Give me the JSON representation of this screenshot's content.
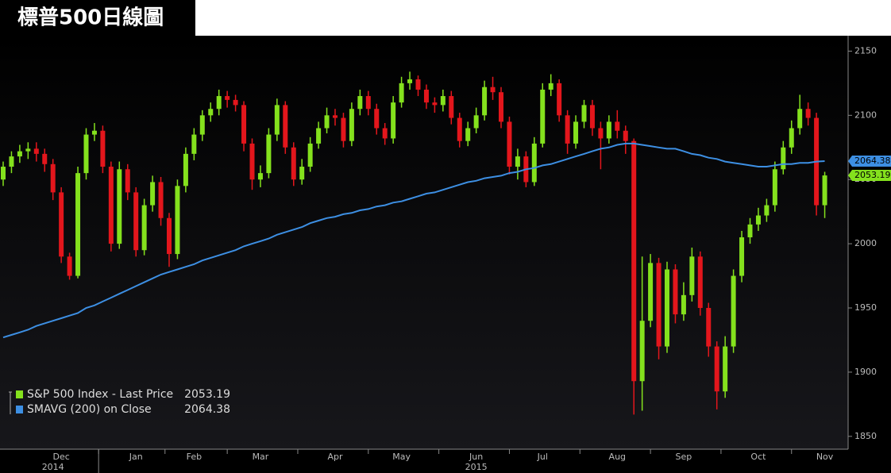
{
  "chart_data": {
    "type": "candlestick",
    "title": "標普500日線圖",
    "categories": [
      null,
      null,
      null,
      null,
      null,
      null,
      null,
      "Dec",
      null,
      null,
      null,
      null,
      null,
      null,
      null,
      null,
      "Jan",
      null,
      null,
      null,
      null,
      null,
      null,
      "Feb",
      null,
      null,
      null,
      null,
      null,
      null,
      null,
      "Mar",
      null,
      null,
      null,
      null,
      null,
      null,
      null,
      null,
      "Apr",
      null,
      null,
      null,
      null,
      null,
      null,
      null,
      "May",
      null,
      null,
      null,
      null,
      null,
      null,
      null,
      null,
      "Jun",
      null,
      null,
      null,
      null,
      null,
      null,
      null,
      "Jul",
      null,
      null,
      null,
      null,
      null,
      null,
      null,
      null,
      "Aug",
      null,
      null,
      null,
      null,
      null,
      null,
      null,
      "Sep",
      null,
      null,
      null,
      null,
      null,
      null,
      null,
      null,
      "Oct",
      null,
      null,
      null,
      null,
      null,
      null,
      null,
      "Nov"
    ],
    "year_labels": [
      null,
      null,
      null,
      null,
      null,
      null,
      "2014",
      null,
      null,
      null,
      null,
      null,
      null,
      null,
      null,
      null,
      null,
      null,
      null,
      null,
      null,
      null,
      null,
      null,
      null,
      null,
      null,
      null,
      null,
      null,
      null,
      null,
      null,
      null,
      null,
      null,
      null,
      null,
      null,
      null,
      null,
      null,
      null,
      null,
      null,
      null,
      null,
      null,
      null,
      null,
      null,
      null,
      null,
      null,
      null,
      null,
      null,
      "2015",
      null,
      null,
      null,
      null,
      null,
      null,
      null,
      null,
      null,
      null,
      null,
      null,
      null,
      null,
      null,
      null,
      null,
      null,
      null,
      null,
      null,
      null,
      null,
      null,
      null,
      null,
      null,
      null,
      null,
      null,
      null,
      null,
      null,
      null,
      null,
      null,
      null,
      null,
      null,
      null,
      null,
      null
    ],
    "series": [
      {
        "name": "S&P 500 Index - Last Price",
        "type": "candlestick",
        "up_color": "#84e11d",
        "down_color": "#e3161c",
        "open": [
          2050,
          2060,
          2068,
          2072,
          2074,
          2070,
          2062,
          2040,
          1990,
          1975,
          2055,
          2085,
          2088,
          2060,
          2000,
          2058,
          2040,
          1995,
          2030,
          2048,
          2020,
          1992,
          2045,
          2070,
          2085,
          2100,
          2105,
          2115,
          2112,
          2108,
          2078,
          2050,
          2055,
          2085,
          2108,
          2075,
          2050,
          2060,
          2078,
          2090,
          2100,
          2098,
          2080,
          2105,
          2115,
          2105,
          2090,
          2082,
          2110,
          2125,
          2128,
          2120,
          2110,
          2108,
          2115,
          2098,
          2080,
          2090,
          2100,
          2122,
          2118,
          2095,
          2060,
          2068,
          2048,
          2078,
          2120,
          2125,
          2100,
          2078,
          2095,
          2108,
          2090,
          2082,
          2095,
          2088,
          2080,
          1893,
          1940,
          1985,
          1920,
          1980,
          1945,
          1960,
          1990,
          1950,
          1920,
          1885,
          1920,
          1975,
          2005,
          2015,
          2022,
          2030,
          2058,
          2075,
          2090,
          2105,
          2098,
          2030
        ],
        "high": [
          2064,
          2072,
          2077,
          2079,
          2079,
          2074,
          2066,
          2044,
          1993,
          2060,
          2090,
          2094,
          2092,
          2064,
          2064,
          2062,
          2044,
          2035,
          2053,
          2052,
          2024,
          2050,
          2075,
          2090,
          2104,
          2110,
          2120,
          2119,
          2116,
          2111,
          2082,
          2061,
          2090,
          2113,
          2111,
          2079,
          2066,
          2083,
          2095,
          2106,
          2105,
          2102,
          2110,
          2120,
          2119,
          2109,
          2094,
          2115,
          2130,
          2134,
          2131,
          2124,
          2114,
          2120,
          2119,
          2102,
          2095,
          2106,
          2127,
          2130,
          2122,
          2099,
          2074,
          2072,
          2083,
          2125,
          2132,
          2128,
          2104,
          2100,
          2112,
          2112,
          2095,
          2100,
          2104,
          2092,
          2082,
          1990,
          1992,
          1989,
          1986,
          1984,
          1970,
          1997,
          1994,
          1954,
          1924,
          1928,
          1980,
          2010,
          2020,
          2028,
          2035,
          2064,
          2080,
          2096,
          2116,
          2110,
          2102,
          2056
        ],
        "low": [
          2045,
          2055,
          2063,
          2066,
          2064,
          2056,
          2034,
          1985,
          1972,
          1973,
          2050,
          2080,
          2055,
          1994,
          1996,
          2034,
          1990,
          1991,
          2025,
          2014,
          1982,
          1988,
          2040,
          2065,
          2080,
          2095,
          2100,
          2106,
          2103,
          2072,
          2042,
          2044,
          2051,
          2080,
          2070,
          2045,
          2046,
          2056,
          2074,
          2086,
          2092,
          2075,
          2076,
          2100,
          2100,
          2085,
          2077,
          2078,
          2106,
          2120,
          2115,
          2105,
          2102,
          2103,
          2093,
          2075,
          2076,
          2086,
          2096,
          2112,
          2090,
          2054,
          2050,
          2044,
          2045,
          2075,
          2115,
          2095,
          2070,
          2074,
          2090,
          2084,
          2058,
          2078,
          2082,
          2070,
          1867,
          1870,
          1935,
          1910,
          1915,
          1938,
          1940,
          1955,
          1944,
          1912,
          1871,
          1880,
          1915,
          1970,
          2000,
          2010,
          2017,
          2025,
          2054,
          2070,
          2085,
          2092,
          2022,
          2020
        ],
        "close": [
          2060,
          2068,
          2072,
          2074,
          2070,
          2062,
          2040,
          1990,
          1975,
          2055,
          2085,
          2088,
          2060,
          2000,
          2058,
          2040,
          1995,
          2030,
          2048,
          2020,
          1992,
          2045,
          2070,
          2085,
          2100,
          2105,
          2115,
          2112,
          2108,
          2078,
          2050,
          2055,
          2085,
          2108,
          2075,
          2050,
          2060,
          2078,
          2090,
          2100,
          2098,
          2080,
          2105,
          2115,
          2105,
          2090,
          2082,
          2110,
          2125,
          2128,
          2120,
          2110,
          2108,
          2115,
          2098,
          2080,
          2090,
          2100,
          2122,
          2118,
          2095,
          2060,
          2068,
          2048,
          2078,
          2120,
          2125,
          2100,
          2078,
          2095,
          2108,
          2090,
          2082,
          2095,
          2088,
          2080,
          1893,
          1940,
          1985,
          1920,
          1980,
          1945,
          1960,
          1990,
          1950,
          1920,
          1885,
          1920,
          1975,
          2005,
          2015,
          2022,
          2030,
          2058,
          2075,
          2090,
          2105,
          2098,
          2030,
          2053.19
        ]
      },
      {
        "name": "SMAVG (200) on Close",
        "type": "line",
        "color": "#3d8fe3",
        "values": [
          1927,
          1929,
          1931,
          1933,
          1936,
          1938,
          1940,
          1942,
          1944,
          1946,
          1950,
          1952,
          1955,
          1958,
          1961,
          1964,
          1967,
          1970,
          1973,
          1976,
          1978,
          1980,
          1982,
          1984,
          1987,
          1989,
          1991,
          1993,
          1995,
          1998,
          2000,
          2002,
          2004,
          2007,
          2009,
          2011,
          2013,
          2016,
          2018,
          2020,
          2021,
          2023,
          2024,
          2026,
          2027,
          2029,
          2030,
          2032,
          2033,
          2035,
          2037,
          2039,
          2040,
          2042,
          2044,
          2046,
          2048,
          2049,
          2051,
          2052,
          2053,
          2055,
          2056,
          2058,
          2059,
          2061,
          2062,
          2064,
          2066,
          2068,
          2070,
          2072,
          2074,
          2075,
          2077,
          2078,
          2078,
          2077,
          2076,
          2075,
          2074,
          2074,
          2072,
          2070,
          2069,
          2067,
          2066,
          2064,
          2063,
          2062,
          2061,
          2060,
          2060,
          2061,
          2062,
          2062,
          2063,
          2063,
          2064,
          2064.38
        ]
      }
    ],
    "ylim": [
      1840,
      2162
    ],
    "yticks": [
      1850,
      1900,
      1950,
      2000,
      2050,
      2100,
      2150
    ],
    "grid": false,
    "legend": "bottom-left"
  }
}
